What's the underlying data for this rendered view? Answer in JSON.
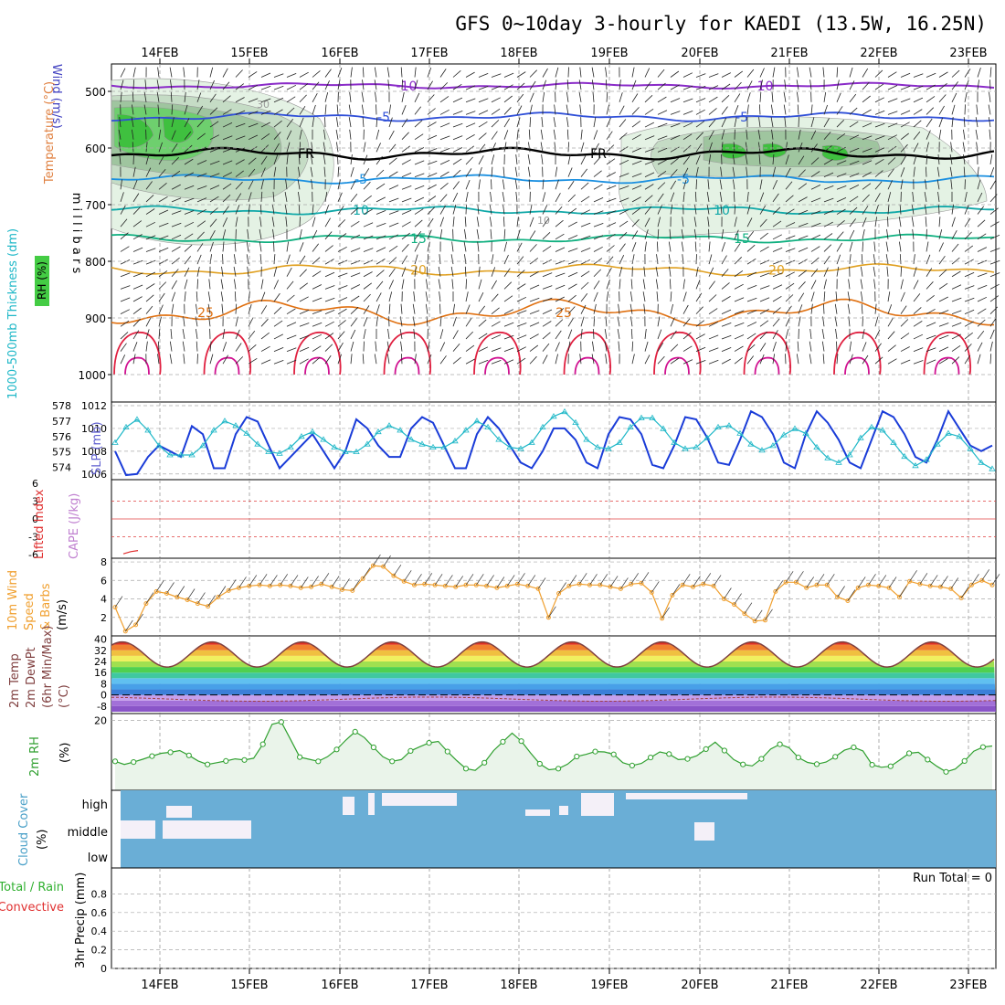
{
  "title": "GFS 0~10day 3-hourly for KAEDI (13.5W, 16.25N)",
  "date_labels": [
    "14FEB",
    "15FEB",
    "16FEB",
    "17FEB",
    "18FEB",
    "19FEB",
    "20FEB",
    "21FEB",
    "22FEB",
    "23FEB"
  ],
  "colors": {
    "temp_neg10": "#8a2bc8",
    "temp_neg5": "#2f4fd8",
    "temp_fr": "#000000",
    "temp_5": "#1a8fe0",
    "temp_10": "#10a8a8",
    "temp_15": "#10b080",
    "temp_20": "#e0a020",
    "temp_25": "#e07010",
    "temp_30": "#e02040",
    "temp_35": "#d01090",
    "rh": "#44cc44",
    "slp": "#1a3cd8",
    "thickness": "#20b8c8",
    "li": "#e03030",
    "wind": "#f0a030",
    "temp2m": "#804040",
    "rh2m": "#30a030",
    "cloud": "#6aaed6",
    "cloud_clear": "#f4f0f8"
  },
  "chart_data": [
    {
      "type": "heatmap",
      "name_on_chart": "",
      "ylabel": [
        "Wind (m/s)",
        "Temperature (°C)",
        "RH (%)"
      ],
      "ylabel_axis": "m i l l i b a r s",
      "ylim": [
        1000,
        475
      ],
      "yticks": [
        500,
        600,
        700,
        800,
        900,
        1000
      ],
      "isotherm_labels": [
        {
          "label": "-10",
          "p": 490
        },
        {
          "label": "-5",
          "p": 545
        },
        {
          "label": "FR",
          "p": 610
        },
        {
          "label": "-5",
          "p": 655
        },
        {
          "label": "10",
          "p": 710
        },
        {
          "label": "15",
          "p": 760
        },
        {
          "label": "20",
          "p": 815
        },
        {
          "label": "25",
          "p": 890
        }
      ],
      "rh_labels": [
        "30",
        "10"
      ]
    },
    {
      "type": "line",
      "ylabel_left": "1000-500mb Thickness (dm)",
      "ylabel_right": "SLP (mb)",
      "yticks_left": [
        "578",
        "577",
        "576",
        "575",
        "574"
      ],
      "yticks_right": [
        "1012",
        "1010",
        "1008",
        "1006"
      ],
      "ylim_left": [
        573.2,
        578
      ],
      "ylim_right": [
        1005.5,
        1012
      ],
      "series": [
        {
          "key": "slp",
          "axis": "right",
          "values": [
            1008,
            1005.9,
            1006,
            1007.5,
            1008.5,
            1008,
            1007.5,
            1010.2,
            1009.5,
            1006.5,
            1006.5,
            1009.5,
            1011,
            1010.6,
            1008.5,
            1006.5,
            1007.5,
            1008.5,
            1009.5,
            1008,
            1006.5,
            1008,
            1010.8,
            1010,
            1008.5,
            1007.5,
            1007.5,
            1010,
            1011,
            1010.5,
            1008.5,
            1006.5,
            1006.5,
            1009.5,
            1011,
            1010,
            1008.5,
            1007,
            1006.5,
            1008,
            1010,
            1010,
            1009,
            1007,
            1006.5,
            1009.5,
            1011,
            1010.8,
            1009.5,
            1006.8,
            1006.5,
            1008.5,
            1011,
            1010.8,
            1009.2,
            1007,
            1006.8,
            1009,
            1011.5,
            1011,
            1009.5,
            1007,
            1006.5,
            1009.5,
            1011.5,
            1010.5,
            1009,
            1007,
            1006.5,
            1009,
            1011.5,
            1011,
            1009.5,
            1007.5,
            1007,
            1009,
            1011.5,
            1010,
            1008.5,
            1008,
            1008.5
          ]
        },
        {
          "key": "thickness",
          "axis": "left",
          "values": [
            575.6,
            576.6,
            577.1,
            576.4,
            575.4,
            574.8,
            574.8,
            574.8,
            575.4,
            576.4,
            577,
            576.7,
            576.2,
            575.5,
            575,
            574.9,
            575.3,
            576,
            576.3,
            575.8,
            575.3,
            575,
            575,
            575.5,
            576.3,
            576.7,
            576.4,
            575.8,
            575.5,
            575.3,
            575.3,
            575.7,
            576.4,
            577,
            576.6,
            575.8,
            575.3,
            575.2,
            575.6,
            576.6,
            577.3,
            577.6,
            576.9,
            575.8,
            575.3,
            575.2,
            575.6,
            576.6,
            577.2,
            577.2,
            576.5,
            575.6,
            575.2,
            575.3,
            575.9,
            576.6,
            576.7,
            576.2,
            575.5,
            575.1,
            575.4,
            576.1,
            576.5,
            576.2,
            575.3,
            574.6,
            574.3,
            574.8,
            575.9,
            576.6,
            576.4,
            575.6,
            574.7,
            574.1,
            574.5,
            575.5,
            576.2,
            576,
            575.2,
            574.3,
            573.9
          ]
        }
      ]
    },
    {
      "type": "line",
      "ylabel_left": "Lifted Index",
      "ylabel_right": "CAPE (J/kg)",
      "yticks": [
        "6",
        "3",
        "0",
        "-3",
        "-6"
      ],
      "ylim": [
        -6,
        6
      ],
      "series": [
        {
          "key": "li",
          "values": [
            5.2,
            4.8,
            4.6
          ]
        }
      ]
    },
    {
      "type": "line",
      "ylabel": [
        "10m Wind",
        "Speed",
        "& Barbs",
        "(m/s)"
      ],
      "yticks": [
        "8",
        "6",
        "4",
        "2"
      ],
      "ylim": [
        0,
        8.4
      ],
      "series": [
        {
          "key": "wind",
          "values": [
            3.1,
            0.5,
            1.2,
            3.5,
            4.8,
            4.6,
            4.2,
            3.9,
            3.5,
            3.2,
            4.2,
            4.9,
            5.2,
            5.4,
            5.5,
            5.4,
            5.5,
            5.4,
            5.2,
            5.3,
            5.6,
            5.3,
            5.0,
            4.9,
            6.2,
            7.6,
            7.5,
            6.5,
            5.9,
            5.5,
            5.6,
            5.5,
            5.4,
            5.3,
            5.5,
            5.5,
            5.4,
            5.2,
            5.4,
            5.6,
            5.4,
            5.1,
            2.0,
            4.6,
            5.4,
            5.6,
            5.5,
            5.5,
            5.3,
            5.1,
            5.6,
            5.7,
            4.7,
            1.9,
            4.4,
            5.5,
            5.3,
            5.6,
            5.4,
            4.0,
            3.4,
            2.4,
            1.6,
            1.7,
            4.8,
            5.8,
            5.8,
            5.2,
            5.5,
            5.5,
            4.2,
            3.8,
            5.2,
            5.5,
            5.4,
            5.2,
            4.2,
            5.9,
            5.6,
            5.4,
            5.3,
            5.1,
            4.1,
            5.5,
            6.0,
            5.5
          ]
        }
      ]
    },
    {
      "type": "area",
      "ylabel": [
        "2m Temp",
        "2m DewPt",
        "(6hr Min/Max)",
        "(°C)"
      ],
      "yticks": [
        "40",
        "32",
        "24",
        "16",
        "8",
        "0",
        "-8"
      ],
      "ylim": [
        -12,
        41
      ]
    },
    {
      "type": "line",
      "ylabel": [
        "2m RH",
        "(%)"
      ],
      "yticks": [
        "20"
      ],
      "ylim": [
        0,
        22
      ],
      "series": [
        {
          "key": "rh2m",
          "values": [
            8.3,
            7.4,
            8.1,
            8.9,
            9.8,
            10.6,
            10.9,
            11.4,
            10,
            8.4,
            7.4,
            7.9,
            8.4,
            9.0,
            8.7,
            9.2,
            13.2,
            18.9,
            19.6,
            14.6,
            9.5,
            8.9,
            8.3,
            9.6,
            11.7,
            14.4,
            16.8,
            15.1,
            12.3,
            9.6,
            8.3,
            8.8,
            11.3,
            12.5,
            13.6,
            14,
            11.1,
            8.5,
            6.2,
            5.7,
            7.9,
            11.4,
            13.9,
            16.4,
            14.1,
            10.7,
            7.6,
            5.9,
            6.2,
            7.5,
            9.7,
            10.3,
            11.1,
            11,
            10.3,
            7.9,
            7.1,
            7.7,
            9.4,
            11.0,
            10.4,
            8.8,
            9.0,
            9.9,
            11.8,
            13.8,
            11.4,
            8.8,
            7.4,
            7.0,
            9.0,
            11.8,
            13.2,
            12.2,
            9.4,
            8.0,
            7.5,
            8.1,
            9.6,
            11.5,
            12.3,
            11.3,
            7.3,
            6.6,
            6.9,
            8.7,
            10.6,
            10.9,
            8.8,
            6.9,
            5.3,
            6.1,
            8.4,
            11.2,
            12.4,
            12.7
          ]
        }
      ]
    },
    {
      "type": "heatmap",
      "ylabel": [
        "Cloud Cover",
        "(%)"
      ],
      "yticks": [
        "high",
        "middle",
        "low"
      ],
      "note": "Run Total = 0"
    },
    {
      "type": "bar",
      "ylabel_left": [
        "Total / Rain",
        "Convective"
      ],
      "ylabel": [
        "3hr Precip (mm)"
      ],
      "yticks": [
        "0.8",
        "0.6",
        "0.4",
        "0.2",
        "0"
      ],
      "ylim": [
        0,
        1
      ],
      "run_total": "Run Total = 0",
      "values": []
    }
  ]
}
